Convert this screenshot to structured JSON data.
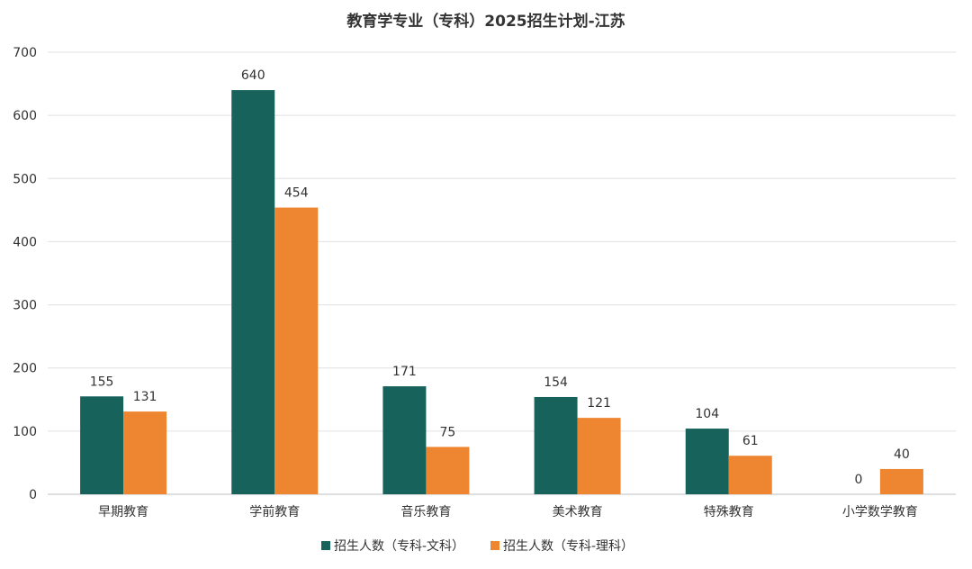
{
  "chart_data": {
    "type": "bar",
    "title": "教育学专业（专科）2025招生计划-江苏",
    "categories": [
      "早期教育",
      "学前教育",
      "音乐教育",
      "美术教育",
      "特殊教育",
      "小学数学教育"
    ],
    "series": [
      {
        "name": "招生人数（专科-文科）",
        "color": "#17635c",
        "values": [
          155,
          640,
          171,
          154,
          104,
          0
        ]
      },
      {
        "name": "招生人数（专科-理科）",
        "color": "#ee8530",
        "values": [
          131,
          454,
          75,
          121,
          61,
          40
        ]
      }
    ],
    "ylim": [
      0,
      700
    ],
    "yticks": [
      0,
      100,
      200,
      300,
      400,
      500,
      600,
      700
    ],
    "grid": true,
    "legend": "bottom-center",
    "data_labels": true
  }
}
